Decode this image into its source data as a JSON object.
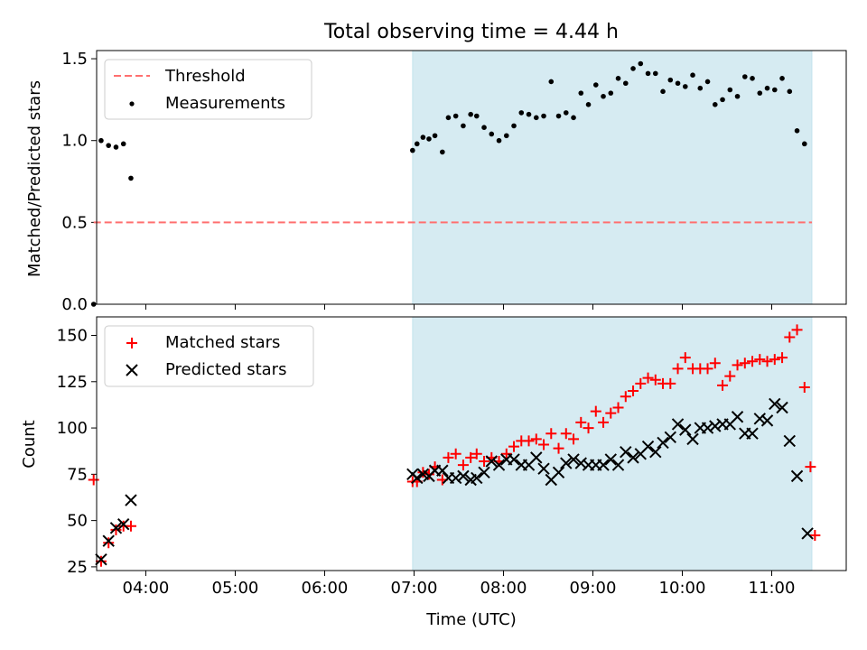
{
  "title": "Total observing time = 4.44 h",
  "chart_data": [
    {
      "type": "scatter",
      "ylabel": "Matched/Predicted stars",
      "xlim": [
        "03:27",
        "11:50"
      ],
      "ylim": [
        0,
        1.55
      ],
      "yticks": [
        "0.0",
        "0.5",
        "1.0",
        "1.5"
      ],
      "shaded_region": {
        "x_start": "06:59",
        "x_end": "11:27",
        "color": "#add8e6"
      },
      "threshold": {
        "name": "Threshold",
        "value": 0.5,
        "x_start": "03:25",
        "x_end": "11:27",
        "color": "#ff6f6f",
        "style": "dashed"
      },
      "legend": {
        "position": "upper-left",
        "entries": [
          "Threshold",
          "Measurements"
        ]
      },
      "series": [
        {
          "name": "Measurements",
          "color": "#000000",
          "marker": "dot",
          "points": [
            [
              "03:25",
              0.0
            ],
            [
              "03:30",
              1.0
            ],
            [
              "03:35",
              0.97
            ],
            [
              "03:40",
              0.96
            ],
            [
              "03:45",
              0.98
            ],
            [
              "03:50",
              0.77
            ],
            [
              "06:59",
              0.94
            ],
            [
              "07:02",
              0.98
            ],
            [
              "07:06",
              1.02
            ],
            [
              "07:10",
              1.01
            ],
            [
              "07:14",
              1.03
            ],
            [
              "07:19",
              0.93
            ],
            [
              "07:23",
              1.14
            ],
            [
              "07:28",
              1.15
            ],
            [
              "07:33",
              1.09
            ],
            [
              "07:38",
              1.16
            ],
            [
              "07:42",
              1.15
            ],
            [
              "07:47",
              1.08
            ],
            [
              "07:52",
              1.04
            ],
            [
              "07:57",
              1.0
            ],
            [
              "08:02",
              1.03
            ],
            [
              "08:07",
              1.09
            ],
            [
              "08:12",
              1.17
            ],
            [
              "08:17",
              1.16
            ],
            [
              "08:22",
              1.14
            ],
            [
              "08:27",
              1.15
            ],
            [
              "08:32",
              1.36
            ],
            [
              "08:37",
              1.15
            ],
            [
              "08:42",
              1.17
            ],
            [
              "08:47",
              1.14
            ],
            [
              "08:52",
              1.29
            ],
            [
              "08:57",
              1.22
            ],
            [
              "09:02",
              1.34
            ],
            [
              "09:07",
              1.27
            ],
            [
              "09:12",
              1.29
            ],
            [
              "09:17",
              1.38
            ],
            [
              "09:22",
              1.35
            ],
            [
              "09:27",
              1.44
            ],
            [
              "09:32",
              1.47
            ],
            [
              "09:37",
              1.41
            ],
            [
              "09:42",
              1.41
            ],
            [
              "09:47",
              1.3
            ],
            [
              "09:52",
              1.37
            ],
            [
              "09:57",
              1.35
            ],
            [
              "10:02",
              1.33
            ],
            [
              "10:07",
              1.4
            ],
            [
              "10:12",
              1.32
            ],
            [
              "10:17",
              1.36
            ],
            [
              "10:22",
              1.22
            ],
            [
              "10:27",
              1.25
            ],
            [
              "10:32",
              1.31
            ],
            [
              "10:37",
              1.27
            ],
            [
              "10:42",
              1.39
            ],
            [
              "10:47",
              1.38
            ],
            [
              "10:52",
              1.29
            ],
            [
              "10:57",
              1.32
            ],
            [
              "11:02",
              1.31
            ],
            [
              "11:07",
              1.38
            ],
            [
              "11:12",
              1.3
            ],
            [
              "11:17",
              1.06
            ],
            [
              "11:22",
              0.98
            ]
          ]
        }
      ]
    },
    {
      "type": "scatter",
      "xlabel": "Time (UTC)",
      "ylabel": "Count",
      "xlim": [
        "03:27",
        "11:50"
      ],
      "ylim": [
        23,
        160
      ],
      "xticks": [
        "04:00",
        "05:00",
        "06:00",
        "07:00",
        "08:00",
        "09:00",
        "10:00",
        "11:00"
      ],
      "yticks": [
        "25",
        "50",
        "75",
        "100",
        "125",
        "150"
      ],
      "shaded_region": {
        "x_start": "06:59",
        "x_end": "11:27",
        "color": "#add8e6"
      },
      "legend": {
        "position": "upper-left",
        "entries": [
          "Matched stars",
          "Predicted stars"
        ]
      },
      "series": [
        {
          "name": "Matched stars",
          "color": "#ff0000",
          "marker": "plus",
          "points": [
            [
              "03:25",
              72
            ],
            [
              "03:30",
              28
            ],
            [
              "03:35",
              38
            ],
            [
              "03:40",
              45
            ],
            [
              "03:45",
              47
            ],
            [
              "03:50",
              47
            ],
            [
              "06:59",
              71
            ],
            [
              "07:02",
              71
            ],
            [
              "07:06",
              76
            ],
            [
              "07:10",
              75
            ],
            [
              "07:14",
              79
            ],
            [
              "07:19",
              72
            ],
            [
              "07:23",
              84
            ],
            [
              "07:28",
              86
            ],
            [
              "07:33",
              80
            ],
            [
              "07:38",
              84
            ],
            [
              "07:42",
              86
            ],
            [
              "07:47",
              82
            ],
            [
              "07:52",
              84
            ],
            [
              "07:57",
              82
            ],
            [
              "08:02",
              86
            ],
            [
              "08:07",
              90
            ],
            [
              "08:12",
              93
            ],
            [
              "08:17",
              93
            ],
            [
              "08:22",
              94
            ],
            [
              "08:27",
              91
            ],
            [
              "08:32",
              97
            ],
            [
              "08:37",
              89
            ],
            [
              "08:42",
              97
            ],
            [
              "08:47",
              94
            ],
            [
              "08:52",
              103
            ],
            [
              "08:57",
              100
            ],
            [
              "09:02",
              109
            ],
            [
              "09:07",
              103
            ],
            [
              "09:12",
              108
            ],
            [
              "09:17",
              111
            ],
            [
              "09:22",
              117
            ],
            [
              "09:27",
              120
            ],
            [
              "09:32",
              124
            ],
            [
              "09:37",
              127
            ],
            [
              "09:42",
              126
            ],
            [
              "09:47",
              124
            ],
            [
              "09:52",
              124
            ],
            [
              "09:57",
              132
            ],
            [
              "10:02",
              138
            ],
            [
              "10:07",
              132
            ],
            [
              "10:12",
              132
            ],
            [
              "10:17",
              132
            ],
            [
              "10:22",
              135
            ],
            [
              "10:27",
              123
            ],
            [
              "10:32",
              128
            ],
            [
              "10:37",
              134
            ],
            [
              "10:42",
              135
            ],
            [
              "10:47",
              136
            ],
            [
              "10:52",
              137
            ],
            [
              "10:57",
              136
            ],
            [
              "11:02",
              137
            ],
            [
              "11:07",
              138
            ],
            [
              "11:12",
              149
            ],
            [
              "11:17",
              153
            ],
            [
              "11:22",
              122
            ],
            [
              "11:26",
              79
            ],
            [
              "11:29",
              42
            ]
          ]
        },
        {
          "name": "Predicted stars",
          "color": "#000000",
          "marker": "x",
          "points": [
            [
              "03:30",
              29
            ],
            [
              "03:35",
              39
            ],
            [
              "03:40",
              46
            ],
            [
              "03:45",
              48
            ],
            [
              "03:50",
              61
            ],
            [
              "06:59",
              75
            ],
            [
              "07:02",
              73
            ],
            [
              "07:06",
              75
            ],
            [
              "07:10",
              74
            ],
            [
              "07:14",
              77
            ],
            [
              "07:19",
              77
            ],
            [
              "07:23",
              73
            ],
            [
              "07:28",
              73
            ],
            [
              "07:33",
              74
            ],
            [
              "07:38",
              72
            ],
            [
              "07:42",
              73
            ],
            [
              "07:47",
              76
            ],
            [
              "07:52",
              82
            ],
            [
              "07:57",
              80
            ],
            [
              "08:02",
              83
            ],
            [
              "08:07",
              83
            ],
            [
              "08:12",
              80
            ],
            [
              "08:17",
              80
            ],
            [
              "08:22",
              84
            ],
            [
              "08:27",
              78
            ],
            [
              "08:32",
              72
            ],
            [
              "08:37",
              76
            ],
            [
              "08:42",
              81
            ],
            [
              "08:47",
              83
            ],
            [
              "08:52",
              81
            ],
            [
              "08:57",
              80
            ],
            [
              "09:02",
              80
            ],
            [
              "09:07",
              80
            ],
            [
              "09:12",
              83
            ],
            [
              "09:17",
              80
            ],
            [
              "09:22",
              87
            ],
            [
              "09:27",
              84
            ],
            [
              "09:32",
              86
            ],
            [
              "09:37",
              90
            ],
            [
              "09:42",
              87
            ],
            [
              "09:47",
              92
            ],
            [
              "09:52",
              95
            ],
            [
              "09:57",
              102
            ],
            [
              "10:02",
              99
            ],
            [
              "10:07",
              94
            ],
            [
              "10:12",
              100
            ],
            [
              "10:17",
              100
            ],
            [
              "10:22",
              101
            ],
            [
              "10:27",
              102
            ],
            [
              "10:32",
              102
            ],
            [
              "10:37",
              106
            ],
            [
              "10:42",
              97
            ],
            [
              "10:47",
              97
            ],
            [
              "10:52",
              105
            ],
            [
              "10:57",
              104
            ],
            [
              "11:02",
              113
            ],
            [
              "11:07",
              111
            ],
            [
              "11:12",
              93
            ],
            [
              "11:17",
              74
            ],
            [
              "11:24",
              43
            ]
          ]
        }
      ]
    }
  ]
}
